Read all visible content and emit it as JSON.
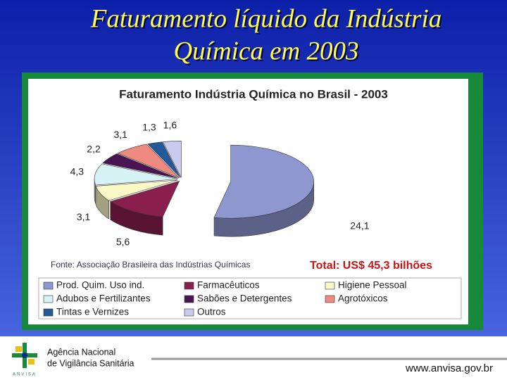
{
  "slide_title": [
    "Faturamento líquido da Indústria",
    "Química em 2003"
  ],
  "chart_data": {
    "type": "pie",
    "title": "Faturamento Indústria Química no Brasil - 2003",
    "categories": [
      "Prod. Quim. Uso ind.",
      "Farmacêuticos",
      "Higiene Pessoal",
      "Adubos e Fertilizantes",
      "Sabões e Detergentes",
      "Agrotóxicos",
      "Tintas e Vernizes",
      "Outros"
    ],
    "values": [
      24.1,
      5.6,
      3.1,
      4.3,
      2.2,
      3.1,
      1.3,
      1.6
    ],
    "value_labels": [
      "24,1",
      "5,6",
      "3,1",
      "4,3",
      "2,2",
      "3,1",
      "1,3",
      "1,6"
    ],
    "colors": [
      "#8e97cf",
      "#8a1f4e",
      "#fbf8c8",
      "#d6f2f5",
      "#4a1450",
      "#ef8a80",
      "#23589a",
      "#c9cbee"
    ],
    "annotations": [
      "Fonte: Associação Brasileira das Indústrias Químicas",
      "Total: US$ 45,3 bilhões"
    ]
  },
  "footer": {
    "logo_text": "ANVISA",
    "agency": [
      "Agência Nacional",
      "de Vigilância Sanitária"
    ],
    "url": "www.anvisa.gov.br"
  }
}
